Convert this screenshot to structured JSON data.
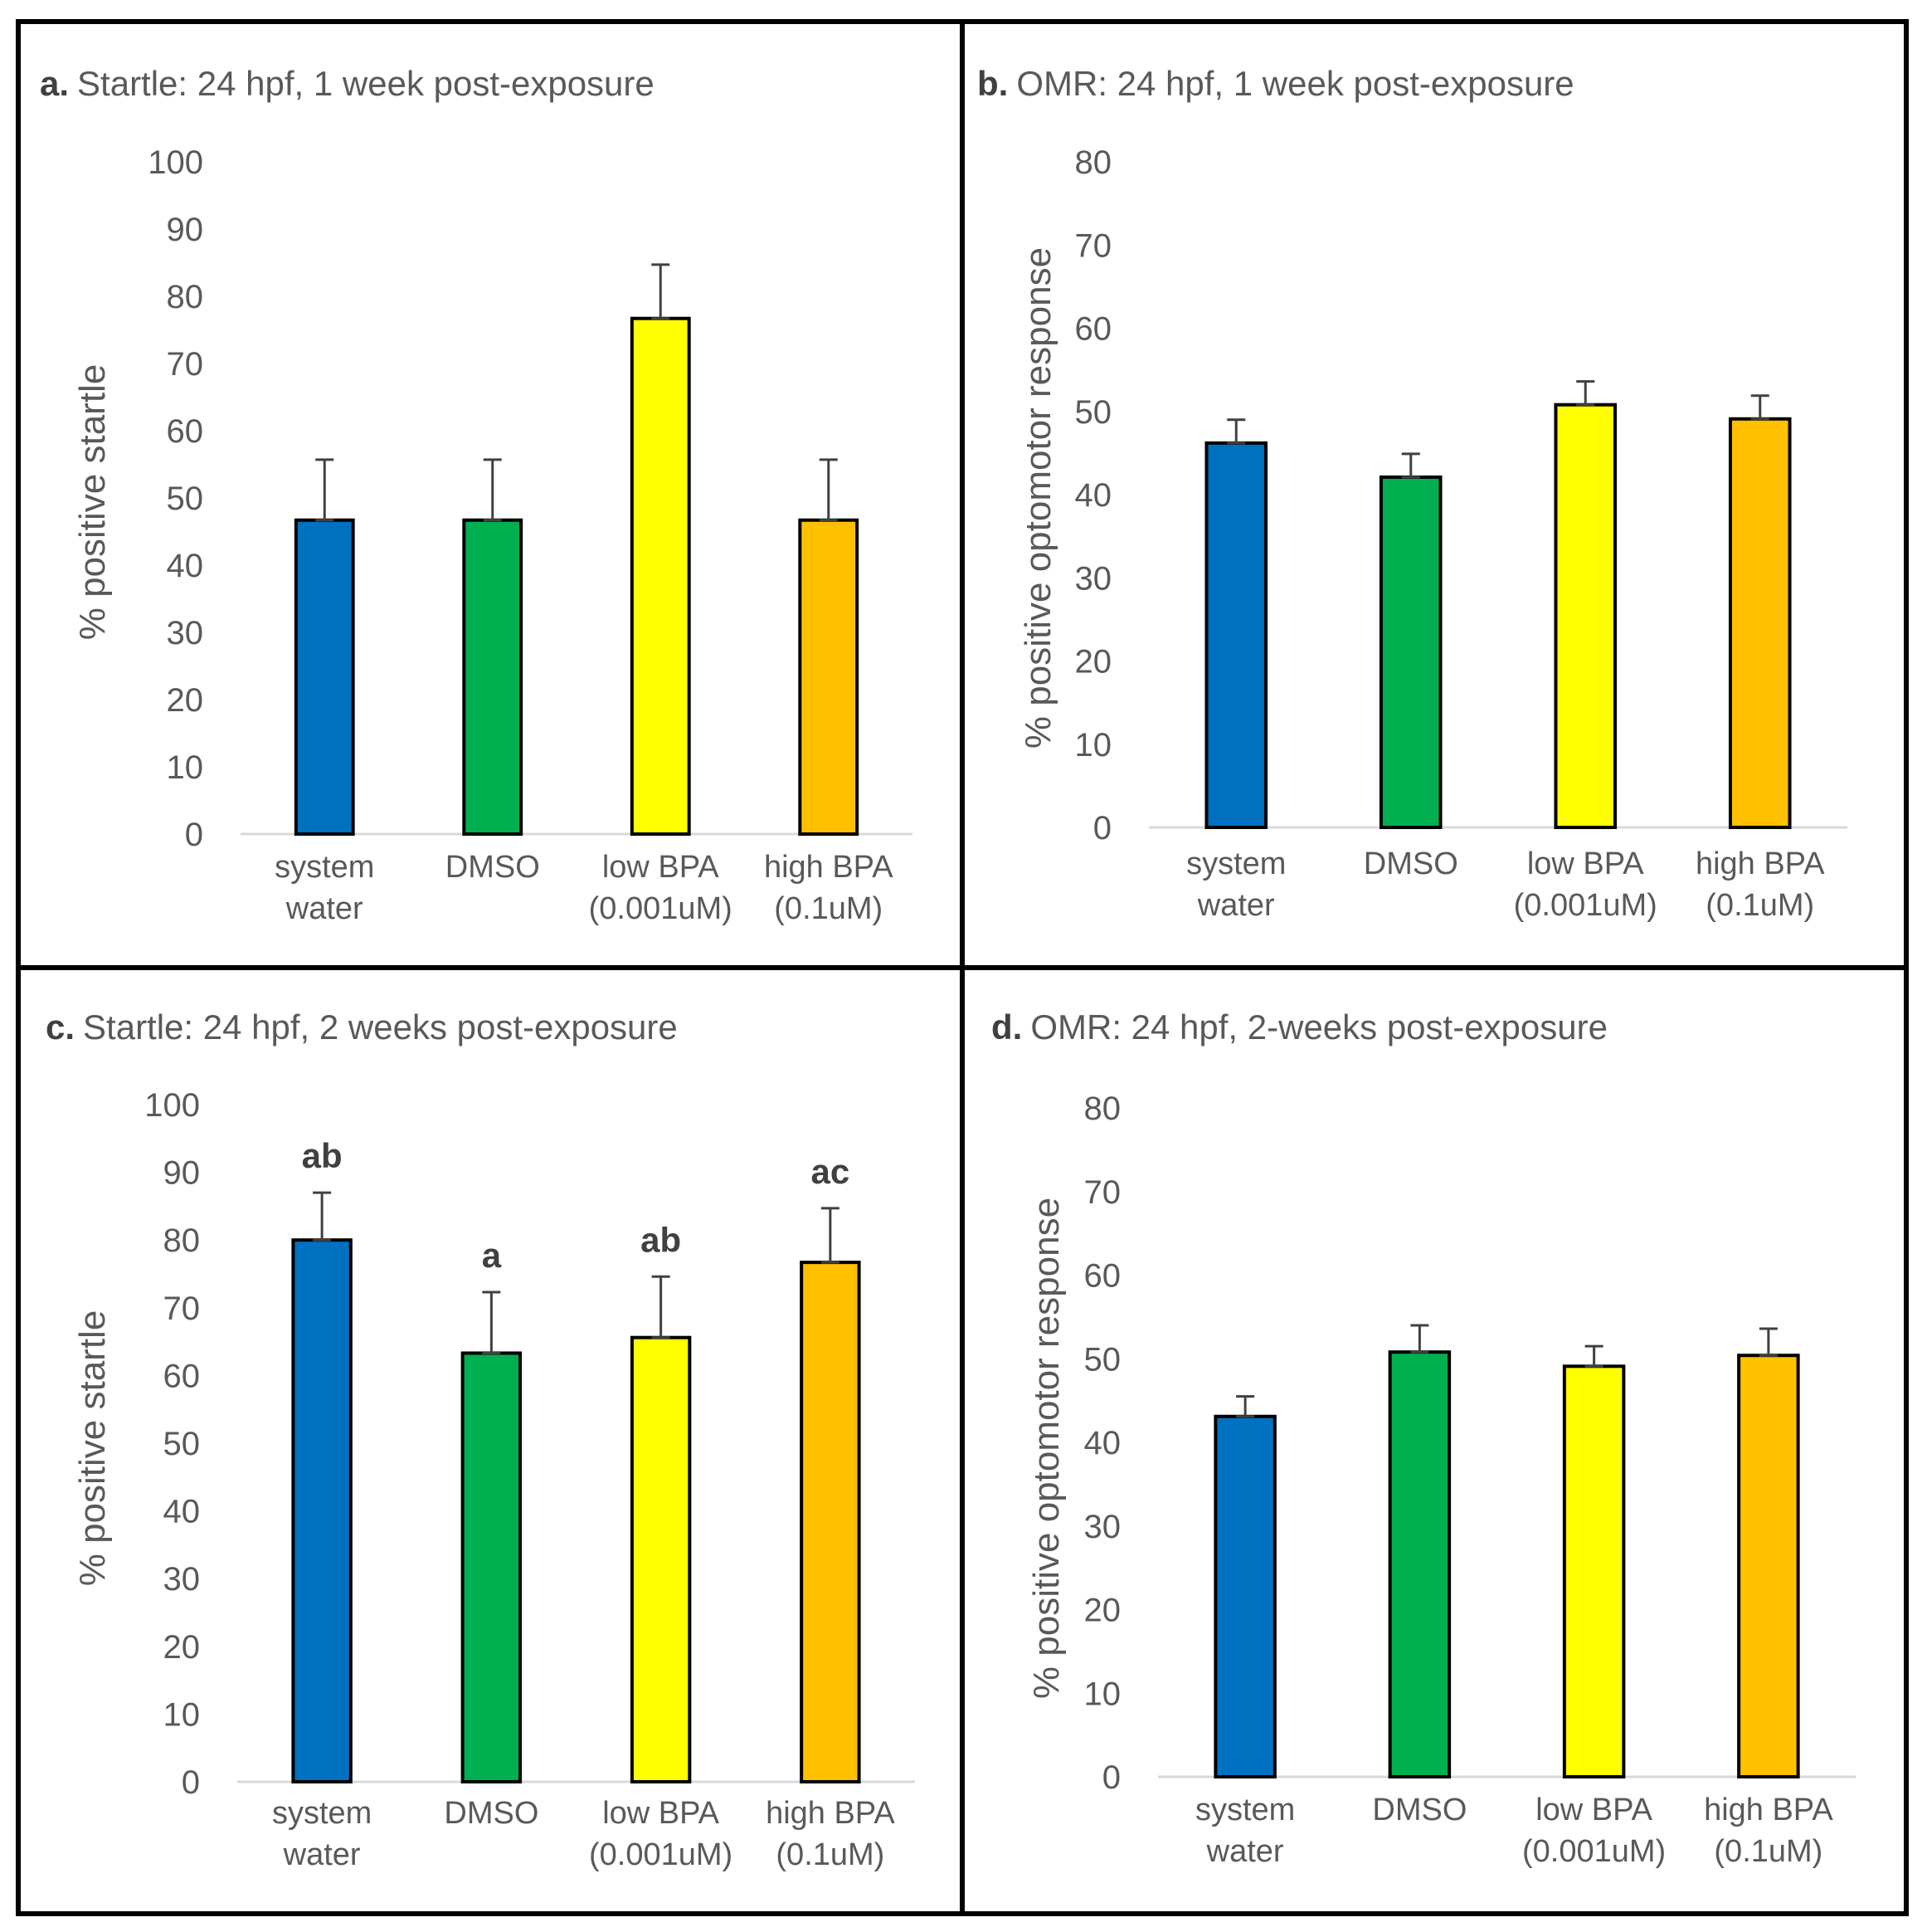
{
  "chart_data": [
    {
      "type": "bar",
      "panel": "a.",
      "title": "Startle: 24 hpf, 1 week post-exposure",
      "ylabel": "% positive startle",
      "xlabel": "",
      "ylim": [
        0,
        100
      ],
      "yticks": [
        0,
        10,
        20,
        30,
        40,
        50,
        60,
        70,
        80,
        90,
        100
      ],
      "categories": [
        [
          "system",
          "water"
        ],
        [
          "DMSO"
        ],
        [
          "low BPA",
          "(0.001uM)"
        ],
        [
          "high BPA",
          "(0.1uM)"
        ]
      ],
      "values": [
        46.7,
        46.7,
        76.7,
        46.7
      ],
      "errors": [
        9,
        9,
        8,
        9
      ],
      "annotations": [
        "",
        "",
        "",
        ""
      ],
      "colors": [
        "#0070c0",
        "#00b050",
        "#ffff00",
        "#ffc000"
      ]
    },
    {
      "type": "bar",
      "panel": "b.",
      "title": "OMR: 24 hpf, 1 week post-exposure",
      "ylabel": "% positive optomotor response",
      "xlabel": "",
      "ylim": [
        0,
        80
      ],
      "yticks": [
        0,
        10,
        20,
        30,
        40,
        50,
        60,
        70,
        80
      ],
      "categories": [
        [
          "system",
          "water"
        ],
        [
          "DMSO"
        ],
        [
          "low BPA",
          "(0.001uM)"
        ],
        [
          "high BPA",
          "(0.1uM)"
        ]
      ],
      "values": [
        46.2,
        42.1,
        50.8,
        49.1
      ],
      "errors": [
        2.8,
        2.8,
        2.8,
        2.8
      ],
      "annotations": [
        "",
        "",
        "",
        ""
      ],
      "colors": [
        "#0070c0",
        "#00b050",
        "#ffff00",
        "#ffc000"
      ]
    },
    {
      "type": "bar",
      "panel": "c.",
      "title": "Startle: 24 hpf, 2 weeks post-exposure",
      "ylabel": "% positive startle",
      "xlabel": "",
      "ylim": [
        0,
        100
      ],
      "yticks": [
        0,
        10,
        20,
        30,
        40,
        50,
        60,
        70,
        80,
        90,
        100
      ],
      "categories": [
        [
          "system",
          "water"
        ],
        [
          "DMSO"
        ],
        [
          "low BPA",
          "(0.001uM)"
        ],
        [
          "high BPA",
          "(0.1uM)"
        ]
      ],
      "values": [
        80,
        63.3,
        65.6,
        76.7
      ],
      "errors": [
        7,
        9,
        9,
        8
      ],
      "annotations": [
        "ab",
        "a",
        "ab",
        "ac"
      ],
      "colors": [
        "#0070c0",
        "#00b050",
        "#ffff00",
        "#ffc000"
      ]
    },
    {
      "type": "bar",
      "panel": "d.",
      "title": "OMR: 24 hpf, 2-weeks post-exposure",
      "ylabel": "% positive optomotor response",
      "xlabel": "",
      "ylim": [
        0,
        80
      ],
      "yticks": [
        0,
        10,
        20,
        30,
        40,
        50,
        60,
        70,
        80
      ],
      "categories": [
        [
          "system",
          "water"
        ],
        [
          "DMSO"
        ],
        [
          "low BPA",
          "(0.001uM)"
        ],
        [
          "high BPA",
          "(0.1uM)"
        ]
      ],
      "values": [
        43.1,
        50.8,
        49.1,
        50.4
      ],
      "errors": [
        2.4,
        3.2,
        2.4,
        3.2
      ],
      "annotations": [
        "",
        "",
        "",
        ""
      ],
      "colors": [
        "#0070c0",
        "#00b050",
        "#ffff00",
        "#ffc000"
      ]
    }
  ]
}
